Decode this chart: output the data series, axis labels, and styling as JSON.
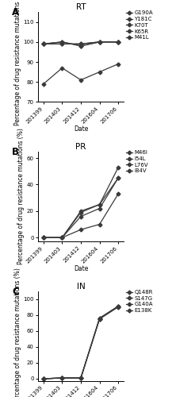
{
  "x_labels": [
    "201399",
    "201403",
    "201412",
    "201604",
    "201706"
  ],
  "x_positions": [
    0,
    1,
    2,
    3,
    4
  ],
  "panel_A": {
    "title": "RT",
    "label": "A",
    "ylim": [
      70,
      115
    ],
    "yticks": [
      70,
      80,
      90,
      100,
      110
    ],
    "series": {
      "G190A": [
        99,
        99,
        99,
        100,
        100
      ],
      "Y181C": [
        99,
        100,
        98,
        100,
        100
      ],
      "K70T": [
        99,
        100,
        98,
        100,
        100
      ],
      "K65R": [
        99,
        99,
        99,
        100,
        100
      ],
      "M41L": [
        79,
        87,
        81,
        85,
        89
      ]
    }
  },
  "panel_B": {
    "title": "PR",
    "label": "B",
    "ylim": [
      -3,
      65
    ],
    "yticks": [
      0,
      20,
      40,
      60
    ],
    "series": {
      "M46I": [
        0,
        0,
        19,
        25,
        53
      ],
      "I54L": [
        0,
        0,
        16,
        22,
        45
      ],
      "L76V": [
        0,
        0,
        6,
        10,
        33
      ],
      "I84V": [
        0,
        0,
        20,
        25,
        45
      ]
    }
  },
  "panel_C": {
    "title": "IN",
    "label": "C",
    "ylim": [
      -3,
      110
    ],
    "yticks": [
      0,
      20,
      40,
      60,
      80,
      100
    ],
    "series": {
      "Q148R": [
        0,
        1,
        1,
        76,
        91
      ],
      "S147G": [
        0,
        1,
        1,
        75,
        91
      ],
      "G140A": [
        0,
        1,
        1,
        76,
        91
      ],
      "E138K": [
        0,
        1,
        1,
        75,
        90
      ]
    }
  },
  "line_color": "#3a3a3a",
  "marker": "D",
  "markersize": 2.5,
  "linewidth": 0.9,
  "ylabel": "Percentage of drug resistance mutations (%)",
  "xlabel": "Date",
  "bg_color": "#ffffff",
  "legend_fontsize": 5.0,
  "tick_fontsize": 5.0,
  "label_fontsize": 5.5,
  "title_fontsize": 7.5,
  "panel_label_fontsize": 8.5
}
